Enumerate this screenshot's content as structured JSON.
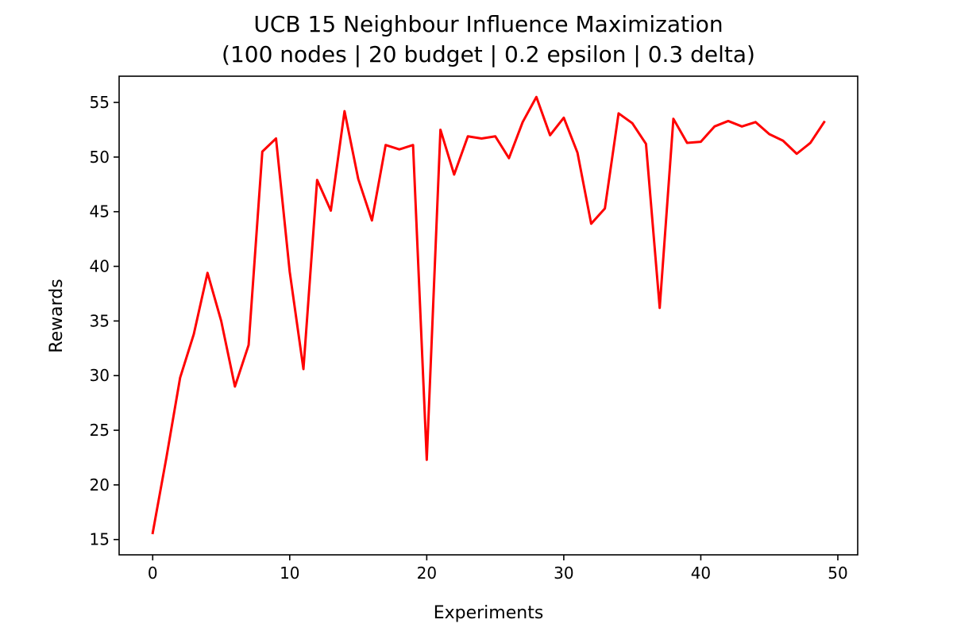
{
  "chart_data": {
    "type": "line",
    "title": "UCB 15 Neighbour Influence Maximization",
    "subtitle": "(100 nodes | 20 budget | 0.2 epsilon | 0.3 delta)",
    "xlabel": "Experiments",
    "ylabel": "Rewards",
    "xlim": [
      -2.45,
      51.45
    ],
    "ylim": [
      13.6,
      57.4
    ],
    "xticks": [
      0,
      10,
      20,
      30,
      40,
      50
    ],
    "yticks": [
      15,
      20,
      25,
      30,
      35,
      40,
      45,
      50,
      55
    ],
    "grid": false,
    "series": [
      {
        "color": "#ff0000",
        "x": [
          0,
          1,
          2,
          3,
          4,
          5,
          6,
          7,
          8,
          9,
          10,
          11,
          12,
          13,
          14,
          15,
          16,
          17,
          18,
          19,
          20,
          21,
          22,
          23,
          24,
          25,
          26,
          27,
          28,
          29,
          30,
          31,
          32,
          33,
          34,
          35,
          36,
          37,
          38,
          39,
          40,
          41,
          42,
          43,
          44,
          45,
          46,
          47,
          48,
          49
        ],
        "values": [
          15.6,
          22.5,
          29.8,
          33.8,
          39.4,
          35.0,
          29.0,
          32.8,
          50.5,
          51.7,
          39.5,
          30.6,
          47.9,
          45.1,
          54.2,
          48.0,
          44.2,
          51.1,
          50.7,
          51.1,
          22.3,
          52.5,
          48.4,
          51.9,
          51.7,
          51.9,
          49.9,
          53.2,
          55.5,
          52.0,
          53.6,
          50.4,
          43.9,
          45.3,
          54.0,
          53.1,
          51.2,
          36.2,
          53.5,
          51.3,
          51.4,
          52.8,
          53.3,
          52.8,
          53.2,
          52.1,
          51.5,
          50.3,
          51.3,
          53.2
        ]
      }
    ]
  }
}
